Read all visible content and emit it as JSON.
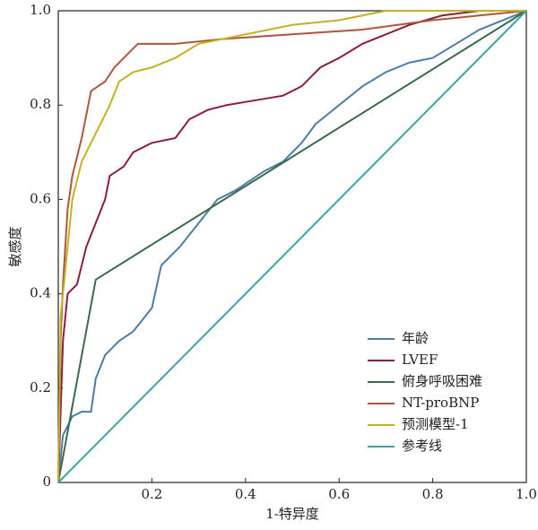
{
  "chart_data": {
    "type": "line",
    "xlabel": "1-特异度",
    "ylabel": "敏感度",
    "xlim": [
      0,
      1
    ],
    "ylim": [
      0,
      1
    ],
    "xticks": [
      0.2,
      0.4,
      0.6,
      0.8,
      {
        "value": 1,
        "label": "1.0"
      }
    ],
    "yticks": [
      0,
      0.2,
      0.4,
      0.6,
      0.8,
      {
        "value": 1,
        "label": "1.0"
      }
    ],
    "legend": "lower right",
    "series": [
      {
        "name": "年龄",
        "color": "#4a7ea8",
        "x": [
          0,
          0.01,
          0.03,
          0.05,
          0.07,
          0.08,
          0.1,
          0.13,
          0.16,
          0.2,
          0.22,
          0.26,
          0.3,
          0.34,
          0.38,
          0.44,
          0.48,
          0.52,
          0.55,
          0.6,
          0.65,
          0.7,
          0.75,
          0.8,
          0.85,
          0.9,
          0.95,
          1
        ],
        "values": [
          0,
          0.1,
          0.14,
          0.15,
          0.15,
          0.22,
          0.27,
          0.3,
          0.32,
          0.37,
          0.46,
          0.5,
          0.55,
          0.6,
          0.62,
          0.66,
          0.68,
          0.72,
          0.76,
          0.8,
          0.84,
          0.87,
          0.89,
          0.9,
          0.93,
          0.96,
          0.98,
          1
        ]
      },
      {
        "name": "LVEF",
        "color": "#8b1e3f",
        "x": [
          0,
          0.01,
          0.02,
          0.04,
          0.06,
          0.08,
          0.1,
          0.11,
          0.14,
          0.16,
          0.2,
          0.25,
          0.28,
          0.32,
          0.36,
          0.42,
          0.48,
          0.52,
          0.56,
          0.6,
          0.65,
          0.7,
          0.75,
          0.82,
          0.9,
          1
        ],
        "values": [
          0,
          0.3,
          0.4,
          0.42,
          0.5,
          0.55,
          0.6,
          0.65,
          0.67,
          0.7,
          0.72,
          0.73,
          0.77,
          0.79,
          0.8,
          0.81,
          0.82,
          0.84,
          0.88,
          0.9,
          0.93,
          0.95,
          0.97,
          0.99,
          1,
          1
        ]
      },
      {
        "name": "俯身呼吸困难",
        "color": "#3b6b4a",
        "x": [
          0,
          0.08,
          1
        ],
        "values": [
          0,
          0.43,
          1
        ]
      },
      {
        "name": "NT-proBNP",
        "color": "#b0553a",
        "x": [
          0,
          0.005,
          0.01,
          0.02,
          0.03,
          0.05,
          0.07,
          0.1,
          0.12,
          0.15,
          0.17,
          0.25,
          0.35,
          0.5,
          0.65,
          0.8,
          0.9,
          1
        ],
        "values": [
          0,
          0.3,
          0.42,
          0.58,
          0.65,
          0.73,
          0.83,
          0.85,
          0.88,
          0.91,
          0.93,
          0.93,
          0.94,
          0.95,
          0.96,
          0.98,
          0.99,
          1
        ]
      },
      {
        "name": "预测模型-1",
        "color": "#c4b020",
        "x": [
          0,
          0.005,
          0.01,
          0.02,
          0.03,
          0.05,
          0.07,
          0.09,
          0.11,
          0.13,
          0.16,
          0.2,
          0.25,
          0.3,
          0.4,
          0.5,
          0.6,
          0.7,
          1
        ],
        "values": [
          0,
          0.35,
          0.4,
          0.5,
          0.6,
          0.68,
          0.72,
          0.76,
          0.8,
          0.85,
          0.87,
          0.88,
          0.9,
          0.93,
          0.95,
          0.97,
          0.98,
          1,
          1
        ]
      },
      {
        "name": "参考线",
        "color": "#3fa3a3",
        "x": [
          0,
          1
        ],
        "values": [
          0,
          1
        ]
      }
    ]
  }
}
